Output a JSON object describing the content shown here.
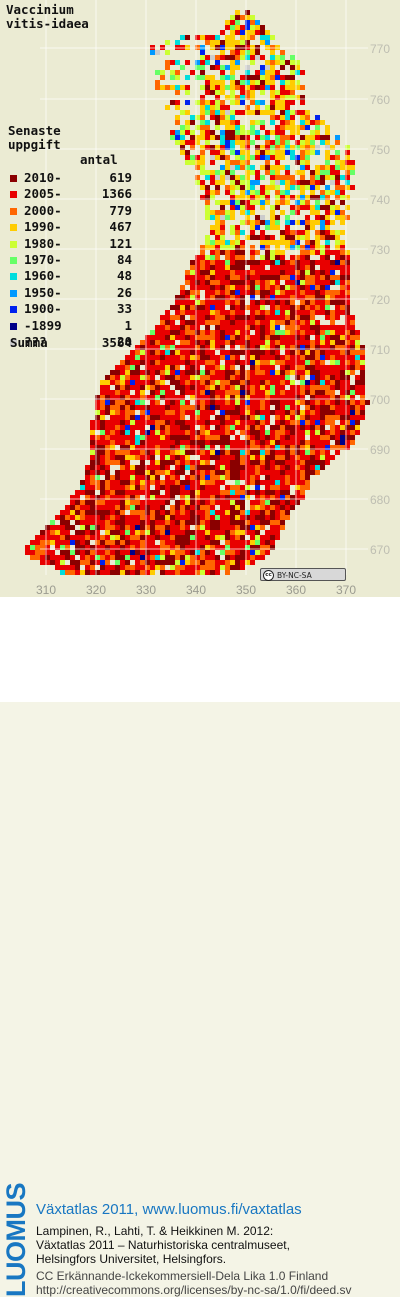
{
  "species": {
    "line1": "Vaccinium",
    "line2": "vitis-idaea"
  },
  "legend": {
    "title_line1": "Senaste",
    "title_line2": "uppgift",
    "count_header": "antal",
    "items": [
      {
        "label": "2010-",
        "count": "619",
        "color": "#8a0000"
      },
      {
        "label": "2005-",
        "count": "1366",
        "color": "#e80000"
      },
      {
        "label": "2000-",
        "count": "779",
        "color": "#ff6600"
      },
      {
        "label": "1990-",
        "count": "467",
        "color": "#ffcc00"
      },
      {
        "label": "1980-",
        "count": "121",
        "color": "#ccff33"
      },
      {
        "label": "1970-",
        "count": "84",
        "color": "#66ff66"
      },
      {
        "label": "1960-",
        "count": "48",
        "color": "#00dddd"
      },
      {
        "label": "1950-",
        "count": "26",
        "color": "#0099ff"
      },
      {
        "label": "1900-",
        "count": "33",
        "color": "#0022ee"
      },
      {
        "label": "-1899",
        "count": "1",
        "color": "#000088"
      },
      {
        "label": "???",
        "count": "20",
        "color": "#cccccc"
      }
    ],
    "total_label": "Summa",
    "total_count": "3564"
  },
  "axis": {
    "y_labels": [
      "770",
      "760",
      "750",
      "740",
      "730",
      "720",
      "710",
      "700",
      "690",
      "680",
      "670"
    ],
    "x_labels": [
      "310",
      "320",
      "330",
      "340",
      "350",
      "360",
      "370"
    ]
  },
  "map_colors": {
    "background": "#ebebd3",
    "grid": "#ffffff",
    "outline": "#ffffff"
  },
  "cc_badge": {
    "symbol": "cc",
    "text": "BY-NC-SA"
  },
  "footer": {
    "logo": "LUOMUS",
    "title": "Växtatlas 2011, www.luomus.fi/vaxtatlas",
    "citation_line1": "Lampinen, R., Lahti, T. & Heikkinen M. 2012:",
    "citation_line2": "Växtatlas 2011 – Naturhistoriska centralmuseet,",
    "citation_line3": "Helsingfors Universitet, Helsingfors.",
    "license_line1": "CC Erkännande-Ickekommersiell-Dela Lika 1.0 Finland",
    "license_line2": "http://creativecommons.org/licenses/by-nc-sa/1.0/fi/deed.sv"
  }
}
